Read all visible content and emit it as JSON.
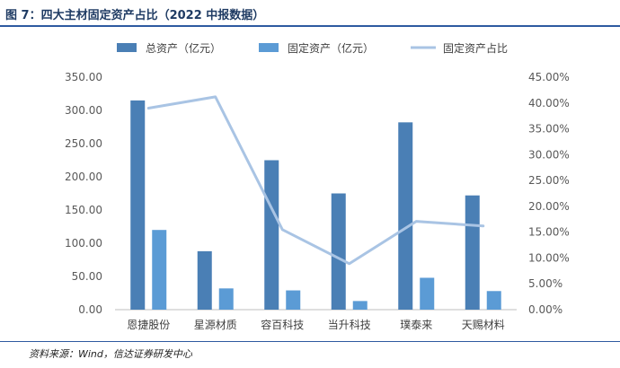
{
  "figure": {
    "title": "图 7：四大主材固定资产占比（2022 中报数据）",
    "source": "资料来源：Wind，信达证券研发中心"
  },
  "colors": {
    "total_assets": "#4a7fb5",
    "fixed_assets": "#5b9bd5",
    "ratio_line": "#a9c4e4",
    "title": "#1f3b63",
    "rule": "#2e5aa0"
  },
  "chart_data": {
    "type": "bar",
    "title": "",
    "categories": [
      "恩捷股份",
      "星源材质",
      "容百科技",
      "当升科技",
      "璞泰来",
      "天赐材料"
    ],
    "series": [
      {
        "name": "总资产（亿元）",
        "type": "bar",
        "axis": "left",
        "values": [
          315,
          88,
          225,
          175,
          282,
          172
        ]
      },
      {
        "name": "固定资产（亿元）",
        "type": "bar",
        "axis": "left",
        "values": [
          120,
          32,
          29,
          13,
          48,
          28
        ]
      },
      {
        "name": "固定资产占比",
        "type": "line",
        "axis": "right",
        "values": [
          39.0,
          41.2,
          15.5,
          8.9,
          17.1,
          16.2
        ]
      }
    ],
    "ylim_left": [
      0,
      350
    ],
    "left_ticks": [
      "0.00",
      "50.00",
      "100.00",
      "150.00",
      "200.00",
      "250.00",
      "300.00",
      "350.00"
    ],
    "ylim_right": [
      0,
      45
    ],
    "right_ticks": [
      "0.00%",
      "5.00%",
      "10.00%",
      "15.00%",
      "20.00%",
      "25.00%",
      "30.00%",
      "35.00%",
      "40.00%",
      "45.00%"
    ],
    "grid": false,
    "legend": "top"
  }
}
